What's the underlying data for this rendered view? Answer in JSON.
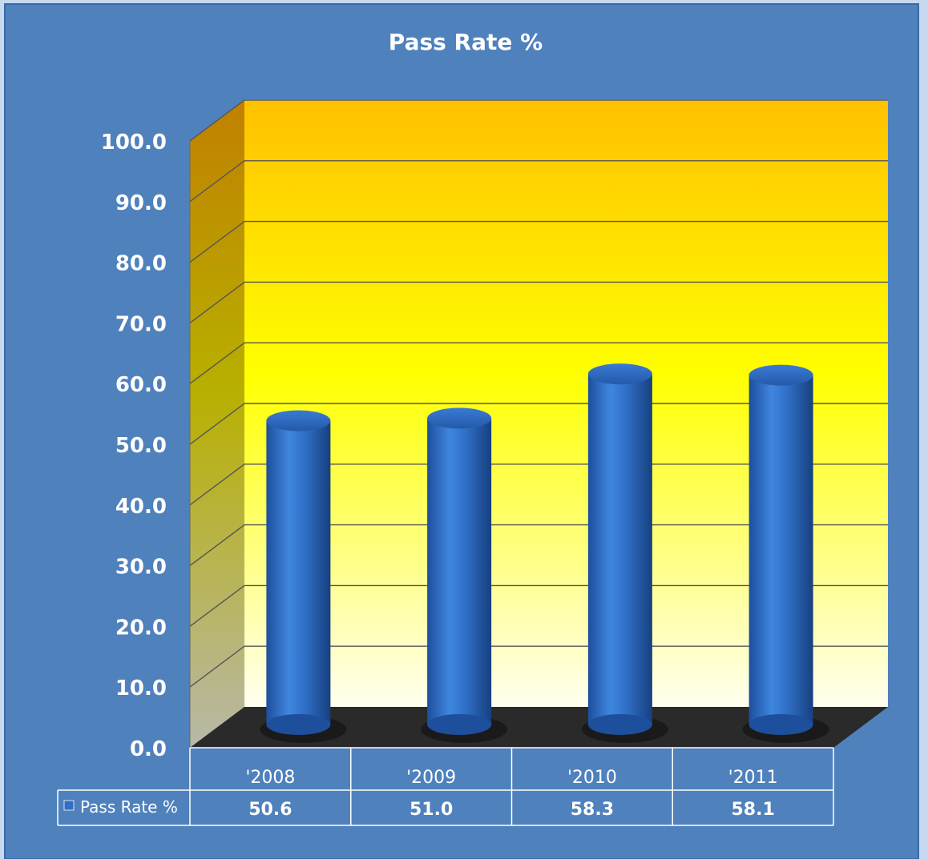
{
  "chart_data": {
    "type": "bar",
    "title": "Pass Rate %",
    "categories": [
      "'2008",
      "'2009",
      "'2010",
      "'2011"
    ],
    "series": [
      {
        "name": "Pass Rate %",
        "values": [
          50.6,
          51.0,
          58.3,
          58.1
        ]
      }
    ],
    "data_table_values": [
      "50.6",
      "51.0",
      "58.3",
      "58.1"
    ],
    "ylim": [
      0,
      100
    ],
    "ytick_labels": [
      "0.0",
      "10.0",
      "20.0",
      "30.0",
      "40.0",
      "50.0",
      "60.0",
      "70.0",
      "80.0",
      "90.0",
      "100.0"
    ],
    "grid": true,
    "legend": "data-table-left",
    "style": "3d-cylinder",
    "colors": {
      "frame": "#4f81bd",
      "page_background": "#c6d9f1",
      "bar": "#2f6fc6",
      "wall_top": "#ffc000",
      "wall_mid": "#ffff00",
      "wall_bottom": "#fffff0",
      "floor": "#2a2a2a",
      "text": "#ffffff"
    }
  }
}
